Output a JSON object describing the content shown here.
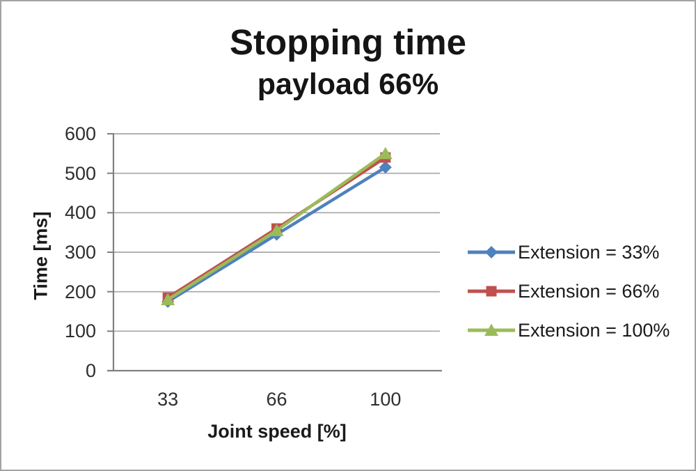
{
  "chart_data": {
    "type": "line",
    "title": "Stopping time",
    "subtitle": "payload 66%",
    "xlabel": "Joint speed [%]",
    "ylabel": "Time [ms]",
    "categories": [
      "33",
      "66",
      "100"
    ],
    "y_ticks": [
      600,
      500,
      400,
      300,
      200,
      100,
      0
    ],
    "ylim": [
      0,
      600
    ],
    "grid": true,
    "legend_position": "right",
    "grid_color": "#a6a6a6",
    "axis_color": "#808080",
    "series": [
      {
        "name": "Extension = 33%",
        "marker": "diamond",
        "color": "#4F81BD",
        "values": [
          175,
          345,
          515
        ]
      },
      {
        "name": "Extension = 66%",
        "marker": "square",
        "color": "#C0504D",
        "values": [
          185,
          360,
          540
        ]
      },
      {
        "name": "Extension = 100%",
        "marker": "triangle",
        "color": "#9BBB59",
        "values": [
          180,
          355,
          550
        ]
      }
    ]
  }
}
